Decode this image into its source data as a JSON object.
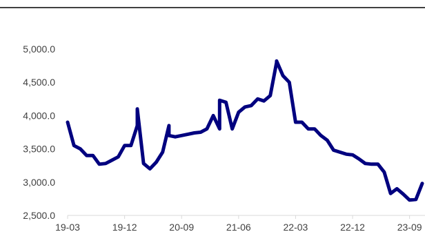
{
  "chart_data": {
    "type": "line",
    "title": "",
    "xlabel": "",
    "ylabel": "",
    "ylim": [
      2500,
      5000
    ],
    "yticks": [
      "5,000.0",
      "4,500.0",
      "4,000.0",
      "3,500.0",
      "3,000.0",
      "2,500.0"
    ],
    "ytick_values": [
      5000,
      4500,
      4000,
      3500,
      3000,
      2500
    ],
    "xticks": [
      "19-03",
      "19-12",
      "20-09",
      "21-06",
      "22-03",
      "22-12",
      "23-09"
    ],
    "xtick_values": [
      "2019-03",
      "2019-12",
      "2020-09",
      "2021-06",
      "2022-03",
      "2022-12",
      "2023-09"
    ],
    "x_range": [
      "2019-03",
      "2023-11"
    ],
    "grid": false,
    "legend": "none",
    "colors": {
      "line": "#00007f",
      "axis": "#d9d9d9",
      "top_rule": "#000000"
    },
    "series": [
      {
        "x": [
          "2019-03",
          "2019-04",
          "2019-05",
          "2019-06",
          "2019-07",
          "2019-08",
          "2019-09",
          "2019-10",
          "2019-11",
          "2019-12",
          "2020-01",
          "2020-02",
          "2020-02",
          "2020-03",
          "2020-04",
          "2020-05",
          "2020-06",
          "2020-07",
          "2020-07",
          "2020-08",
          "2020-09",
          "2020-10",
          "2020-11",
          "2020-12",
          "2021-01",
          "2021-02",
          "2021-03",
          "2021-03",
          "2021-04",
          "2021-05",
          "2021-06",
          "2021-07",
          "2021-08",
          "2021-09",
          "2021-10",
          "2021-11",
          "2021-12",
          "2021-12",
          "2022-01",
          "2022-02",
          "2022-03",
          "2022-04",
          "2022-05",
          "2022-06",
          "2022-07",
          "2022-08",
          "2022-09",
          "2022-10",
          "2022-11",
          "2022-12",
          "2023-01",
          "2023-02",
          "2023-03",
          "2023-04",
          "2023-05",
          "2023-06",
          "2023-07",
          "2023-08",
          "2023-09",
          "2023-10",
          "2023-11"
        ],
        "values": [
          3900,
          3550,
          3500,
          3400,
          3400,
          3270,
          3280,
          3330,
          3380,
          3550,
          3550,
          3850,
          4100,
          3280,
          3200,
          3300,
          3450,
          3850,
          3700,
          3680,
          3700,
          3720,
          3740,
          3750,
          3800,
          4000,
          3800,
          4230,
          4200,
          3800,
          4050,
          4130,
          4150,
          4250,
          4220,
          4300,
          4800,
          4820,
          4600,
          4500,
          3900,
          3900,
          3800,
          3800,
          3700,
          3630,
          3480,
          3450,
          3420,
          3410,
          3350,
          3280,
          3270,
          3270,
          3150,
          2830,
          2900,
          2820,
          2730,
          2740,
          2980
        ]
      }
    ]
  }
}
